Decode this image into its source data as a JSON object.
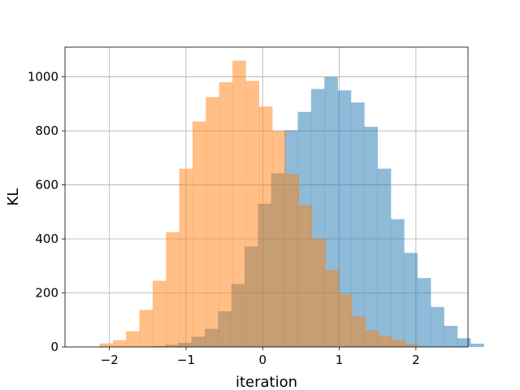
{
  "chart_data": {
    "type": "bar",
    "xlabel": "iteration",
    "ylabel": "KL",
    "xlim": [
      -2.58,
      2.68
    ],
    "ylim": [
      0,
      1110
    ],
    "xticks": [
      -2,
      -1,
      0,
      1,
      2
    ],
    "yticks": [
      0,
      200,
      400,
      600,
      800,
      1000
    ],
    "grid": true,
    "series": [
      {
        "color": "#1f77b4",
        "opacity": 0.5,
        "bin_start": -1.45,
        "bin_width": 0.1735,
        "counts": [
          3,
          8,
          15,
          38,
          67,
          132,
          233,
          372,
          530,
          643,
          802,
          870,
          955,
          1000,
          950,
          905,
          815,
          660,
          473,
          348,
          255,
          148,
          78,
          32,
          12
        ]
      },
      {
        "color": "#ff7f0e",
        "opacity": 0.5,
        "bin_start": -2.13,
        "bin_width": 0.1735,
        "counts": [
          13,
          25,
          58,
          137,
          245,
          425,
          660,
          835,
          925,
          980,
          1060,
          985,
          890,
          800,
          640,
          525,
          400,
          285,
          195,
          113,
          62,
          42,
          26,
          10
        ]
      }
    ]
  }
}
